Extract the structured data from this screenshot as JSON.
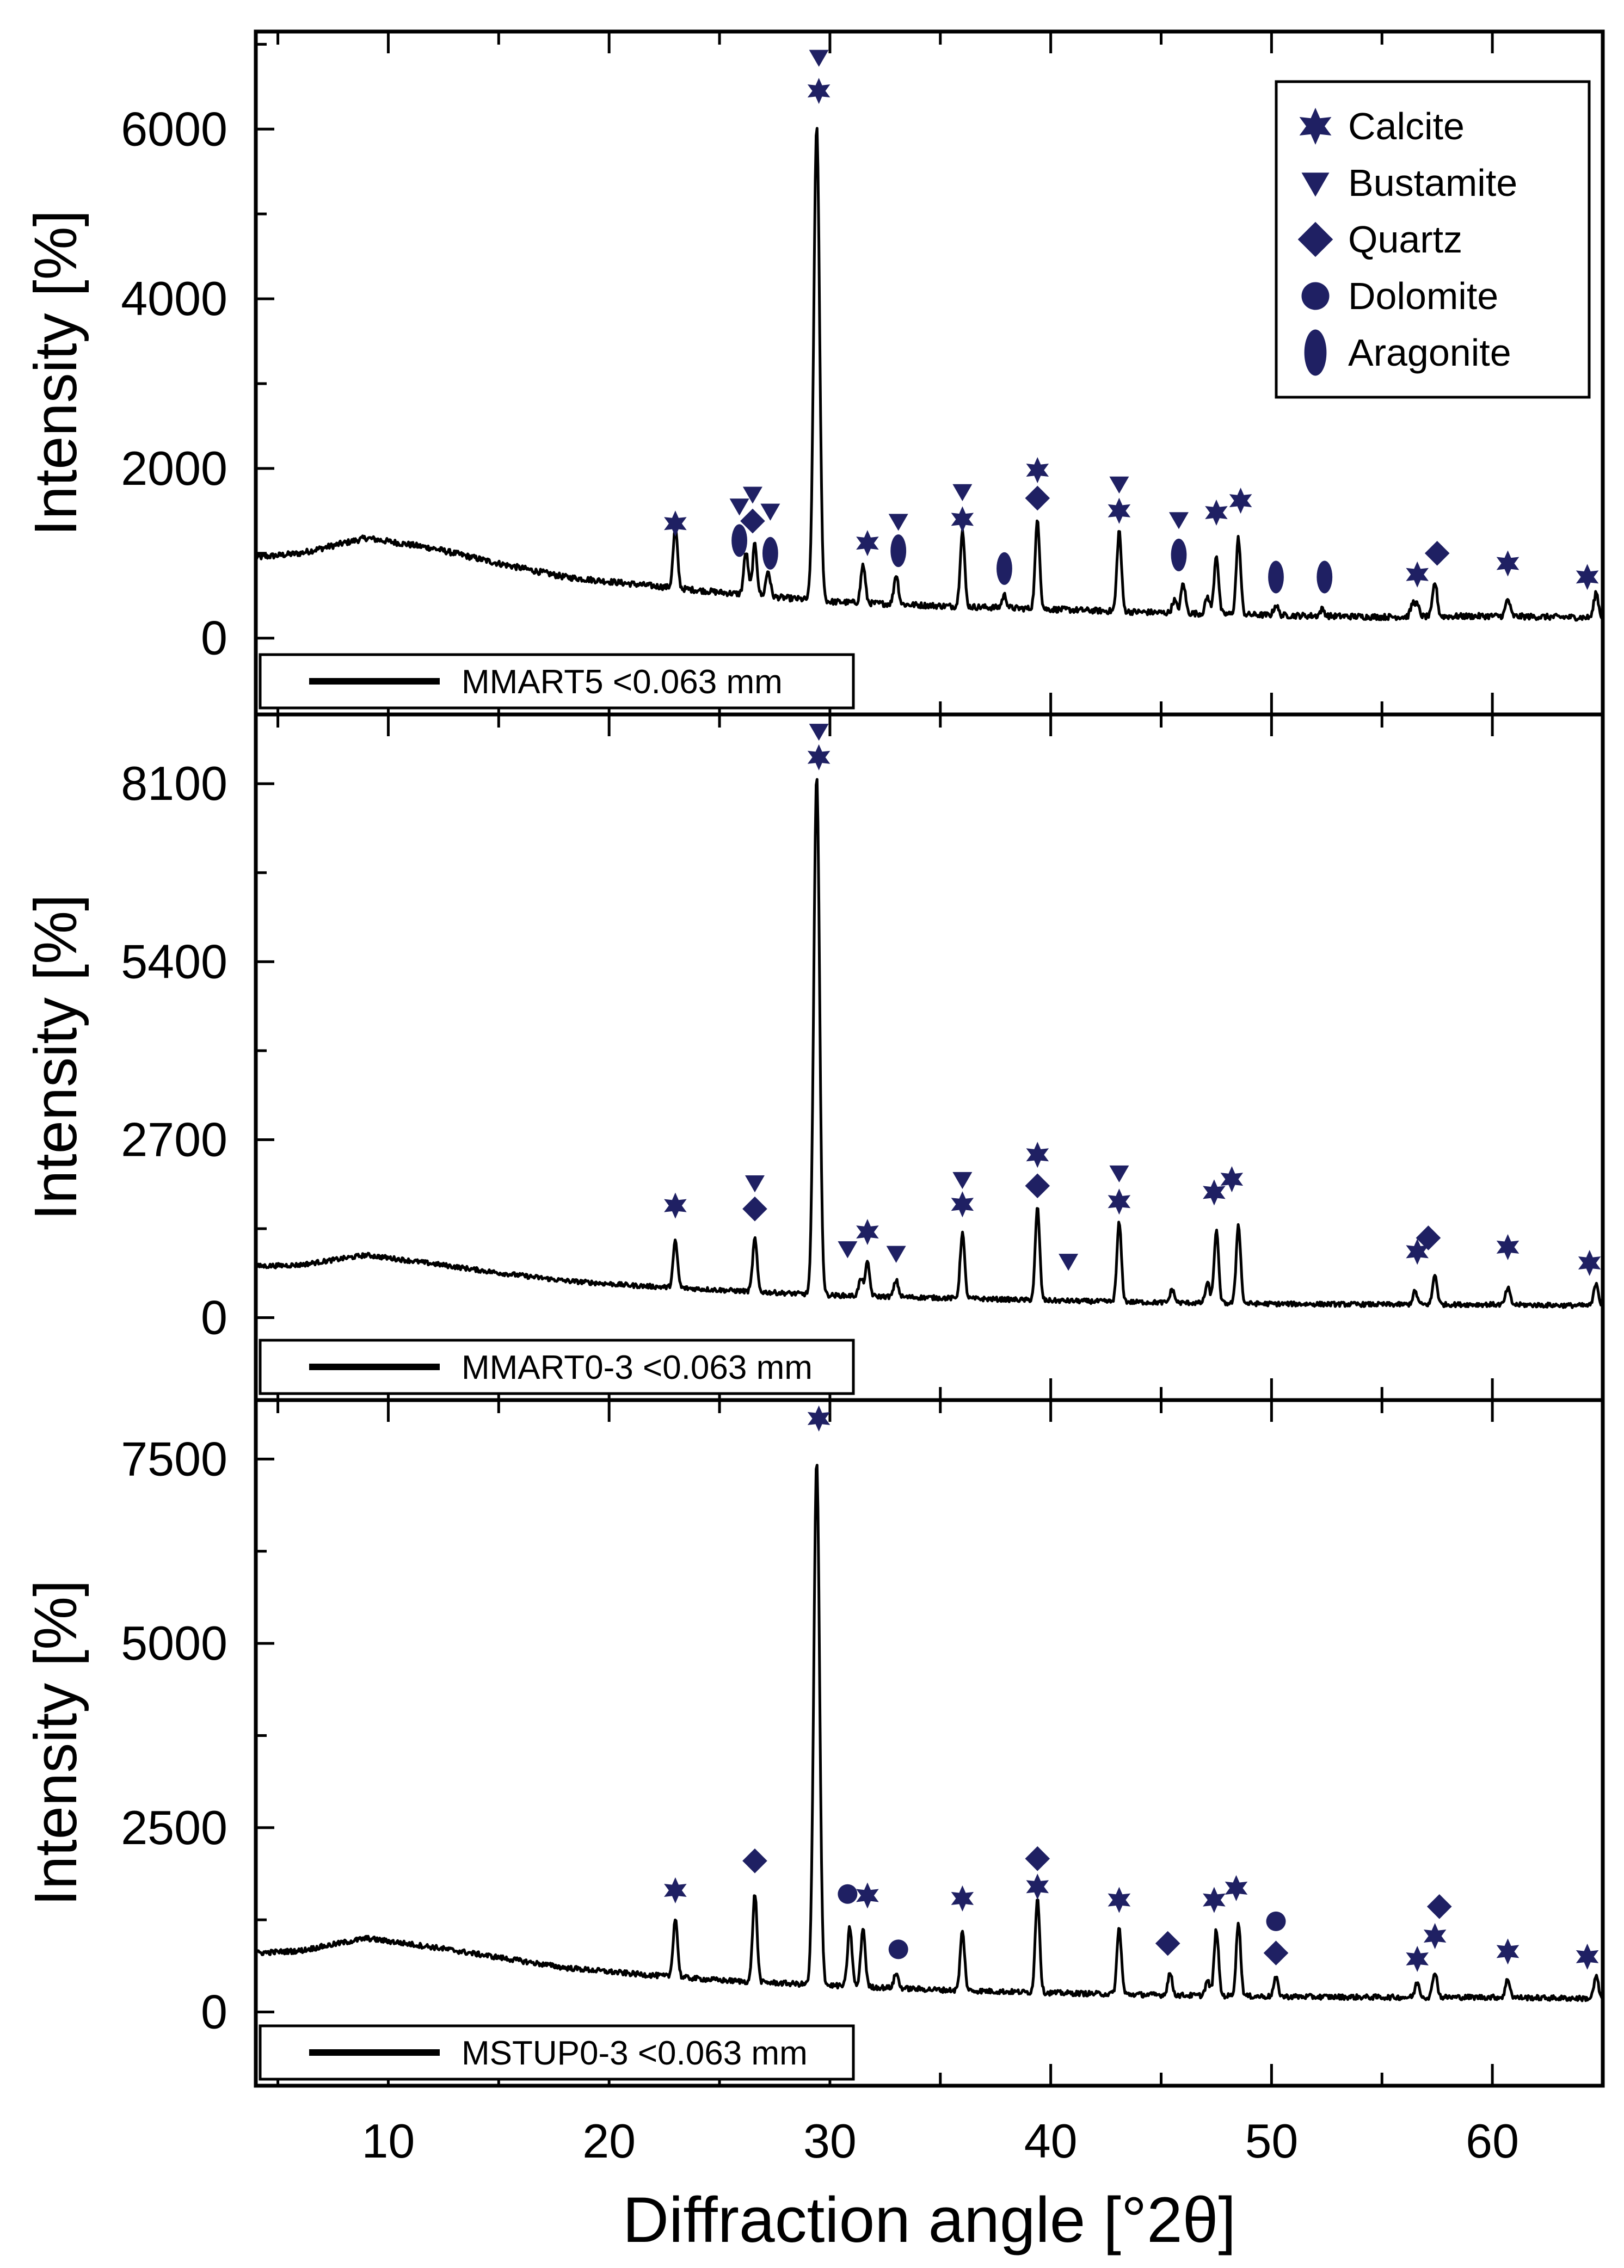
{
  "chart_data": {
    "type": "line",
    "title": "",
    "xlabel": "Diffraction angle [°2θ]",
    "xlim": [
      4,
      65
    ],
    "xticks": [
      10,
      20,
      30,
      40,
      50,
      60
    ],
    "colors": {
      "line": "#000000",
      "marker": "#1f2063",
      "frame": "#000000"
    },
    "legend": {
      "position": "top-right of top panel",
      "entries": [
        {
          "symbol": "star",
          "label": "Calcite"
        },
        {
          "symbol": "triangle",
          "label": "Bustamite"
        },
        {
          "symbol": "diamond",
          "label": "Quartz"
        },
        {
          "symbol": "circle",
          "label": "Dolomite"
        },
        {
          "symbol": "ellipse",
          "label": "Aragonite"
        }
      ]
    },
    "panels": [
      {
        "name": "MMART5 <0.063 mm",
        "ylabel": "Intensity [%]",
        "ylim": [
          -900,
          7150
        ],
        "yticks": [
          0,
          2000,
          4000,
          6000
        ],
        "baseline": [
          [
            4,
            950
          ],
          [
            6,
            1000
          ],
          [
            9,
            1180
          ],
          [
            12,
            1060
          ],
          [
            15,
            880
          ],
          [
            18,
            720
          ],
          [
            21,
            640
          ],
          [
            25,
            540
          ],
          [
            30,
            430
          ],
          [
            35,
            380
          ],
          [
            40,
            340
          ],
          [
            45,
            300
          ],
          [
            50,
            270
          ],
          [
            55,
            250
          ],
          [
            60,
            260
          ],
          [
            65,
            240
          ]
        ],
        "peaks": [
          [
            23.0,
            700
          ],
          [
            26.2,
            500
          ],
          [
            26.6,
            600
          ],
          [
            27.2,
            300
          ],
          [
            29.4,
            5600
          ],
          [
            31.5,
            450
          ],
          [
            33.0,
            350
          ],
          [
            36.0,
            900
          ],
          [
            37.9,
            150
          ],
          [
            39.4,
            1050
          ],
          [
            43.1,
            950
          ],
          [
            45.6,
            150
          ],
          [
            46.0,
            350
          ],
          [
            47.1,
            200
          ],
          [
            47.5,
            700
          ],
          [
            48.5,
            900
          ],
          [
            50.2,
            120
          ],
          [
            52.3,
            80
          ],
          [
            56.4,
            150
          ],
          [
            56.6,
            120
          ],
          [
            57.4,
            400
          ],
          [
            60.7,
            200
          ],
          [
            64.7,
            300
          ]
        ],
        "markers": [
          {
            "x": 23.0,
            "y": 1350,
            "symbol": "star"
          },
          {
            "x": 25.9,
            "y": 1560,
            "symbol": "triangle"
          },
          {
            "x": 25.9,
            "y": 1150,
            "symbol": "ellipse"
          },
          {
            "x": 26.5,
            "y": 1700,
            "symbol": "triangle"
          },
          {
            "x": 26.5,
            "y": 1380,
            "symbol": "diamond"
          },
          {
            "x": 27.3,
            "y": 1500,
            "symbol": "triangle"
          },
          {
            "x": 27.3,
            "y": 1000,
            "symbol": "ellipse"
          },
          {
            "x": 29.5,
            "y": 6850,
            "symbol": "triangle"
          },
          {
            "x": 29.5,
            "y": 6450,
            "symbol": "star"
          },
          {
            "x": 31.7,
            "y": 1120,
            "symbol": "star"
          },
          {
            "x": 33.1,
            "y": 1380,
            "symbol": "triangle"
          },
          {
            "x": 33.1,
            "y": 1030,
            "symbol": "ellipse"
          },
          {
            "x": 36.0,
            "y": 1730,
            "symbol": "triangle"
          },
          {
            "x": 36.0,
            "y": 1400,
            "symbol": "star"
          },
          {
            "x": 37.9,
            "y": 820,
            "symbol": "ellipse"
          },
          {
            "x": 39.4,
            "y": 1980,
            "symbol": "star"
          },
          {
            "x": 39.4,
            "y": 1650,
            "symbol": "diamond"
          },
          {
            "x": 43.1,
            "y": 1820,
            "symbol": "triangle"
          },
          {
            "x": 43.1,
            "y": 1500,
            "symbol": "star"
          },
          {
            "x": 45.8,
            "y": 1400,
            "symbol": "triangle"
          },
          {
            "x": 45.8,
            "y": 980,
            "symbol": "ellipse"
          },
          {
            "x": 47.5,
            "y": 1480,
            "symbol": "star"
          },
          {
            "x": 48.6,
            "y": 1620,
            "symbol": "star"
          },
          {
            "x": 50.2,
            "y": 720,
            "symbol": "ellipse"
          },
          {
            "x": 52.4,
            "y": 720,
            "symbol": "ellipse"
          },
          {
            "x": 56.6,
            "y": 750,
            "symbol": "star"
          },
          {
            "x": 57.5,
            "y": 1000,
            "symbol": "diamond"
          },
          {
            "x": 60.7,
            "y": 880,
            "symbol": "star"
          },
          {
            "x": 64.3,
            "y": 720,
            "symbol": "star"
          }
        ]
      },
      {
        "name": "MMART0-3 <0.063 mm",
        "ylabel": "Intensity [%]",
        "ylim": [
          -1250,
          9150
        ],
        "yticks": [
          0,
          2700,
          5400,
          8100
        ],
        "baseline": [
          [
            4,
            780
          ],
          [
            6,
            800
          ],
          [
            9,
            950
          ],
          [
            12,
            820
          ],
          [
            15,
            680
          ],
          [
            18,
            560
          ],
          [
            21,
            490
          ],
          [
            25,
            420
          ],
          [
            30,
            340
          ],
          [
            35,
            300
          ],
          [
            40,
            260
          ],
          [
            45,
            230
          ],
          [
            50,
            210
          ],
          [
            55,
            200
          ],
          [
            60,
            200
          ],
          [
            65,
            180
          ]
        ],
        "peaks": [
          [
            23.0,
            700
          ],
          [
            26.6,
            800
          ],
          [
            29.4,
            7900
          ],
          [
            31.4,
            250
          ],
          [
            31.7,
            500
          ],
          [
            33.0,
            250
          ],
          [
            36.0,
            1000
          ],
          [
            39.4,
            1400
          ],
          [
            43.1,
            1200
          ],
          [
            45.5,
            200
          ],
          [
            47.1,
            300
          ],
          [
            47.5,
            1100
          ],
          [
            48.5,
            1200
          ],
          [
            56.5,
            200
          ],
          [
            57.4,
            450
          ],
          [
            60.7,
            250
          ],
          [
            64.7,
            350
          ]
        ],
        "markers": [
          {
            "x": 23.0,
            "y": 1700,
            "symbol": "star"
          },
          {
            "x": 26.6,
            "y": 2050,
            "symbol": "triangle"
          },
          {
            "x": 26.6,
            "y": 1650,
            "symbol": "diamond"
          },
          {
            "x": 29.5,
            "y": 8900,
            "symbol": "triangle"
          },
          {
            "x": 29.5,
            "y": 8500,
            "symbol": "star"
          },
          {
            "x": 30.8,
            "y": 1050,
            "symbol": "triangle"
          },
          {
            "x": 31.7,
            "y": 1300,
            "symbol": "star"
          },
          {
            "x": 33.0,
            "y": 980,
            "symbol": "triangle"
          },
          {
            "x": 36.0,
            "y": 2100,
            "symbol": "triangle"
          },
          {
            "x": 36.0,
            "y": 1720,
            "symbol": "star"
          },
          {
            "x": 39.4,
            "y": 2470,
            "symbol": "star"
          },
          {
            "x": 39.4,
            "y": 2000,
            "symbol": "diamond"
          },
          {
            "x": 40.8,
            "y": 860,
            "symbol": "triangle"
          },
          {
            "x": 43.1,
            "y": 2200,
            "symbol": "triangle"
          },
          {
            "x": 43.1,
            "y": 1760,
            "symbol": "star"
          },
          {
            "x": 47.4,
            "y": 1900,
            "symbol": "star"
          },
          {
            "x": 48.2,
            "y": 2100,
            "symbol": "star"
          },
          {
            "x": 56.6,
            "y": 1000,
            "symbol": "star"
          },
          {
            "x": 57.1,
            "y": 1210,
            "symbol": "diamond"
          },
          {
            "x": 60.7,
            "y": 1070,
            "symbol": "star"
          },
          {
            "x": 64.4,
            "y": 830,
            "symbol": "star"
          }
        ]
      },
      {
        "name": "MSTUP0-3 <0.063 mm",
        "ylabel": "Intensity [%]",
        "ylim": [
          -1000,
          8300
        ],
        "yticks": [
          0,
          2500,
          5000,
          7500
        ],
        "baseline": [
          [
            4,
            800
          ],
          [
            6,
            830
          ],
          [
            9,
            1000
          ],
          [
            12,
            880
          ],
          [
            15,
            740
          ],
          [
            18,
            600
          ],
          [
            21,
            520
          ],
          [
            25,
            430
          ],
          [
            30,
            360
          ],
          [
            35,
            300
          ],
          [
            40,
            260
          ],
          [
            45,
            230
          ],
          [
            50,
            210
          ],
          [
            55,
            200
          ],
          [
            60,
            200
          ],
          [
            65,
            180
          ]
        ],
        "peaks": [
          [
            23.0,
            800
          ],
          [
            26.6,
            1200
          ],
          [
            29.4,
            7100
          ],
          [
            30.9,
            800
          ],
          [
            31.5,
            800
          ],
          [
            33.0,
            200
          ],
          [
            36.0,
            800
          ],
          [
            39.4,
            1300
          ],
          [
            43.1,
            900
          ],
          [
            45.4,
            300
          ],
          [
            47.1,
            200
          ],
          [
            47.5,
            900
          ],
          [
            48.5,
            1000
          ],
          [
            50.2,
            250
          ],
          [
            56.6,
            200
          ],
          [
            57.4,
            350
          ],
          [
            60.7,
            250
          ],
          [
            64.7,
            300
          ]
        ],
        "markers": [
          {
            "x": 23.0,
            "y": 1650,
            "symbol": "star"
          },
          {
            "x": 26.6,
            "y": 2050,
            "symbol": "diamond"
          },
          {
            "x": 29.5,
            "y": 8050,
            "symbol": "star"
          },
          {
            "x": 30.8,
            "y": 1600,
            "symbol": "circle"
          },
          {
            "x": 31.7,
            "y": 1580,
            "symbol": "star"
          },
          {
            "x": 33.1,
            "y": 850,
            "symbol": "circle"
          },
          {
            "x": 36.0,
            "y": 1540,
            "symbol": "star"
          },
          {
            "x": 39.4,
            "y": 2080,
            "symbol": "diamond"
          },
          {
            "x": 39.4,
            "y": 1700,
            "symbol": "star"
          },
          {
            "x": 43.1,
            "y": 1520,
            "symbol": "star"
          },
          {
            "x": 45.3,
            "y": 930,
            "symbol": "diamond"
          },
          {
            "x": 47.4,
            "y": 1520,
            "symbol": "star"
          },
          {
            "x": 48.4,
            "y": 1680,
            "symbol": "star"
          },
          {
            "x": 50.2,
            "y": 1230,
            "symbol": "circle"
          },
          {
            "x": 50.2,
            "y": 800,
            "symbol": "diamond"
          },
          {
            "x": 56.6,
            "y": 720,
            "symbol": "star"
          },
          {
            "x": 57.4,
            "y": 1030,
            "symbol": "star"
          },
          {
            "x": 57.6,
            "y": 1430,
            "symbol": "diamond"
          },
          {
            "x": 60.7,
            "y": 820,
            "symbol": "star"
          },
          {
            "x": 64.3,
            "y": 750,
            "symbol": "star"
          }
        ]
      }
    ]
  }
}
